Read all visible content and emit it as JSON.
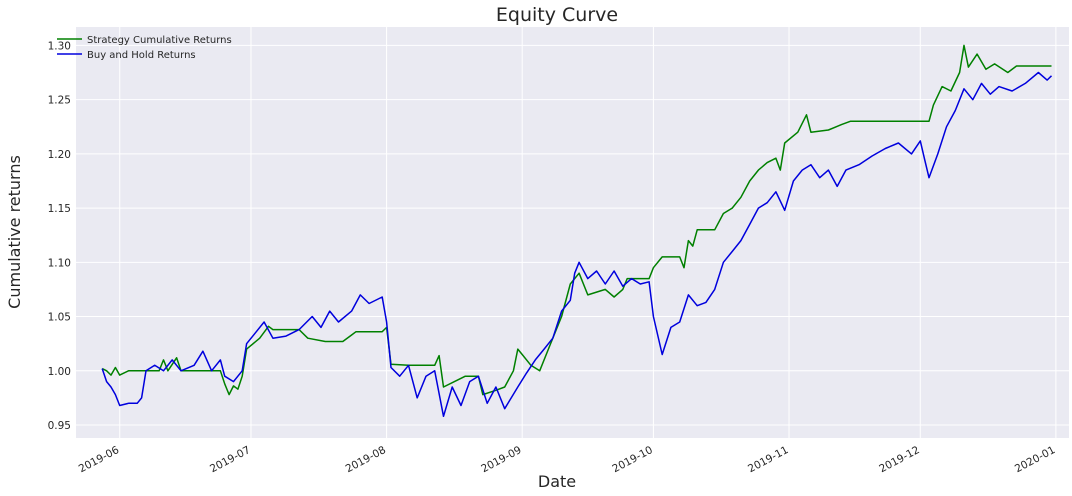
{
  "chart_data": {
    "type": "line",
    "title": "Equity Curve",
    "xlabel": "Date",
    "ylabel": "Cumulative returns",
    "xlim": [
      "2019-05-22",
      "2020-01-04"
    ],
    "ylim": [
      0.938,
      1.317
    ],
    "grid": true,
    "legend_position": "top-left",
    "x_ticks": [
      "2019-06",
      "2019-07",
      "2019-08",
      "2019-09",
      "2019-10",
      "2019-11",
      "2019-12",
      "2020-01"
    ],
    "y_ticks": [
      "0.95",
      "1.00",
      "1.05",
      "1.10",
      "1.15",
      "1.20",
      "1.25",
      "1.30"
    ],
    "series": [
      {
        "name": "Strategy Cumulative Returns",
        "color": "#008000",
        "points": [
          [
            "2019-05-28",
            1.002
          ],
          [
            "2019-05-29",
            1.0
          ],
          [
            "2019-05-30",
            0.996
          ],
          [
            "2019-05-31",
            1.003
          ],
          [
            "2019-06-01",
            0.996
          ],
          [
            "2019-06-03",
            1.0
          ],
          [
            "2019-06-10",
            1.0
          ],
          [
            "2019-06-11",
            1.01
          ],
          [
            "2019-06-12",
            1.0
          ],
          [
            "2019-06-14",
            1.012
          ],
          [
            "2019-06-15",
            1.0
          ],
          [
            "2019-06-24",
            1.0
          ],
          [
            "2019-06-25",
            0.988
          ],
          [
            "2019-06-26",
            0.978
          ],
          [
            "2019-06-27",
            0.986
          ],
          [
            "2019-06-28",
            0.983
          ],
          [
            "2019-06-29",
            0.995
          ],
          [
            "2019-06-30",
            1.02
          ],
          [
            "2019-07-03",
            1.03
          ],
          [
            "2019-07-05",
            1.041
          ],
          [
            "2019-07-06",
            1.038
          ],
          [
            "2019-07-12",
            1.038
          ],
          [
            "2019-07-14",
            1.03
          ],
          [
            "2019-07-18",
            1.027
          ],
          [
            "2019-07-22",
            1.027
          ],
          [
            "2019-07-24",
            1.033
          ],
          [
            "2019-07-25",
            1.036
          ],
          [
            "2019-07-31",
            1.036
          ],
          [
            "2019-08-01",
            1.04
          ],
          [
            "2019-08-02",
            1.006
          ],
          [
            "2019-08-06",
            1.005
          ],
          [
            "2019-08-12",
            1.005
          ],
          [
            "2019-08-13",
            1.014
          ],
          [
            "2019-08-14",
            0.985
          ],
          [
            "2019-08-19",
            0.995
          ],
          [
            "2019-08-22",
            0.995
          ],
          [
            "2019-08-23",
            0.978
          ],
          [
            "2019-08-26",
            0.982
          ],
          [
            "2019-08-28",
            0.985
          ],
          [
            "2019-08-30",
            1.0
          ],
          [
            "2019-08-31",
            1.02
          ],
          [
            "2019-09-01",
            1.015
          ],
          [
            "2019-09-03",
            1.005
          ],
          [
            "2019-09-05",
            1.0
          ],
          [
            "2019-09-07",
            1.02
          ],
          [
            "2019-09-09",
            1.04
          ],
          [
            "2019-09-10",
            1.05
          ],
          [
            "2019-09-12",
            1.08
          ],
          [
            "2019-09-14",
            1.09
          ],
          [
            "2019-09-16",
            1.07
          ],
          [
            "2019-09-20",
            1.075
          ],
          [
            "2019-09-22",
            1.068
          ],
          [
            "2019-09-24",
            1.075
          ],
          [
            "2019-09-25",
            1.085
          ],
          [
            "2019-09-30",
            1.085
          ],
          [
            "2019-10-01",
            1.095
          ],
          [
            "2019-10-03",
            1.105
          ],
          [
            "2019-10-07",
            1.105
          ],
          [
            "2019-10-08",
            1.095
          ],
          [
            "2019-10-09",
            1.12
          ],
          [
            "2019-10-10",
            1.115
          ],
          [
            "2019-10-11",
            1.13
          ],
          [
            "2019-10-15",
            1.13
          ],
          [
            "2019-10-17",
            1.145
          ],
          [
            "2019-10-19",
            1.15
          ],
          [
            "2019-10-21",
            1.16
          ],
          [
            "2019-10-23",
            1.175
          ],
          [
            "2019-10-25",
            1.185
          ],
          [
            "2019-10-27",
            1.192
          ],
          [
            "2019-10-29",
            1.196
          ],
          [
            "2019-10-30",
            1.185
          ],
          [
            "2019-10-31",
            1.21
          ],
          [
            "2019-11-03",
            1.22
          ],
          [
            "2019-11-05",
            1.236
          ],
          [
            "2019-11-06",
            1.22
          ],
          [
            "2019-11-10",
            1.222
          ],
          [
            "2019-11-13",
            1.227
          ],
          [
            "2019-11-15",
            1.23
          ],
          [
            "2019-12-03",
            1.23
          ],
          [
            "2019-12-04",
            1.245
          ],
          [
            "2019-12-06",
            1.262
          ],
          [
            "2019-12-08",
            1.258
          ],
          [
            "2019-12-10",
            1.275
          ],
          [
            "2019-12-11",
            1.3
          ],
          [
            "2019-12-12",
            1.28
          ],
          [
            "2019-12-14",
            1.292
          ],
          [
            "2019-12-16",
            1.278
          ],
          [
            "2019-12-18",
            1.283
          ],
          [
            "2019-12-21",
            1.275
          ],
          [
            "2019-12-23",
            1.281
          ],
          [
            "2019-12-31",
            1.281
          ]
        ]
      },
      {
        "name": "Buy and Hold Returns",
        "color": "#0000dd",
        "points": [
          [
            "2019-05-28",
            1.002
          ],
          [
            "2019-05-29",
            0.99
          ],
          [
            "2019-05-30",
            0.985
          ],
          [
            "2019-05-31",
            0.978
          ],
          [
            "2019-06-01",
            0.968
          ],
          [
            "2019-06-03",
            0.97
          ],
          [
            "2019-06-05",
            0.97
          ],
          [
            "2019-06-06",
            0.975
          ],
          [
            "2019-06-07",
            1.0
          ],
          [
            "2019-06-09",
            1.005
          ],
          [
            "2019-06-11",
            1.0
          ],
          [
            "2019-06-13",
            1.01
          ],
          [
            "2019-06-15",
            1.0
          ],
          [
            "2019-06-18",
            1.005
          ],
          [
            "2019-06-20",
            1.018
          ],
          [
            "2019-06-22",
            1.0
          ],
          [
            "2019-06-24",
            1.01
          ],
          [
            "2019-06-25",
            0.995
          ],
          [
            "2019-06-27",
            0.99
          ],
          [
            "2019-06-29",
            1.0
          ],
          [
            "2019-06-30",
            1.025
          ],
          [
            "2019-07-02",
            1.035
          ],
          [
            "2019-07-04",
            1.045
          ],
          [
            "2019-07-06",
            1.03
          ],
          [
            "2019-07-09",
            1.032
          ],
          [
            "2019-07-12",
            1.038
          ],
          [
            "2019-07-15",
            1.05
          ],
          [
            "2019-07-17",
            1.04
          ],
          [
            "2019-07-19",
            1.055
          ],
          [
            "2019-07-21",
            1.045
          ],
          [
            "2019-07-24",
            1.055
          ],
          [
            "2019-07-26",
            1.07
          ],
          [
            "2019-07-28",
            1.062
          ],
          [
            "2019-07-31",
            1.068
          ],
          [
            "2019-08-01",
            1.045
          ],
          [
            "2019-08-02",
            1.003
          ],
          [
            "2019-08-04",
            0.995
          ],
          [
            "2019-08-06",
            1.005
          ],
          [
            "2019-08-08",
            0.975
          ],
          [
            "2019-08-10",
            0.995
          ],
          [
            "2019-08-12",
            1.0
          ],
          [
            "2019-08-14",
            0.958
          ],
          [
            "2019-08-16",
            0.985
          ],
          [
            "2019-08-18",
            0.968
          ],
          [
            "2019-08-20",
            0.99
          ],
          [
            "2019-08-22",
            0.995
          ],
          [
            "2019-08-24",
            0.97
          ],
          [
            "2019-08-26",
            0.985
          ],
          [
            "2019-08-28",
            0.965
          ],
          [
            "2019-08-31",
            0.985
          ],
          [
            "2019-09-02",
            0.998
          ],
          [
            "2019-09-04",
            1.01
          ],
          [
            "2019-09-06",
            1.02
          ],
          [
            "2019-09-08",
            1.03
          ],
          [
            "2019-09-10",
            1.055
          ],
          [
            "2019-09-12",
            1.065
          ],
          [
            "2019-09-13",
            1.09
          ],
          [
            "2019-09-14",
            1.1
          ],
          [
            "2019-09-16",
            1.085
          ],
          [
            "2019-09-18",
            1.092
          ],
          [
            "2019-09-20",
            1.08
          ],
          [
            "2019-09-22",
            1.092
          ],
          [
            "2019-09-24",
            1.078
          ],
          [
            "2019-09-26",
            1.085
          ],
          [
            "2019-09-28",
            1.08
          ],
          [
            "2019-09-30",
            1.082
          ],
          [
            "2019-10-01",
            1.05
          ],
          [
            "2019-10-03",
            1.015
          ],
          [
            "2019-10-05",
            1.04
          ],
          [
            "2019-10-07",
            1.045
          ],
          [
            "2019-10-09",
            1.07
          ],
          [
            "2019-10-11",
            1.06
          ],
          [
            "2019-10-13",
            1.063
          ],
          [
            "2019-10-15",
            1.075
          ],
          [
            "2019-10-17",
            1.1
          ],
          [
            "2019-10-19",
            1.11
          ],
          [
            "2019-10-21",
            1.12
          ],
          [
            "2019-10-23",
            1.135
          ],
          [
            "2019-10-25",
            1.15
          ],
          [
            "2019-10-27",
            1.155
          ],
          [
            "2019-10-29",
            1.165
          ],
          [
            "2019-10-31",
            1.148
          ],
          [
            "2019-11-02",
            1.175
          ],
          [
            "2019-11-04",
            1.185
          ],
          [
            "2019-11-06",
            1.19
          ],
          [
            "2019-11-08",
            1.178
          ],
          [
            "2019-11-10",
            1.185
          ],
          [
            "2019-11-12",
            1.17
          ],
          [
            "2019-11-14",
            1.185
          ],
          [
            "2019-11-17",
            1.19
          ],
          [
            "2019-11-20",
            1.198
          ],
          [
            "2019-11-23",
            1.205
          ],
          [
            "2019-11-26",
            1.21
          ],
          [
            "2019-11-29",
            1.2
          ],
          [
            "2019-12-01",
            1.212
          ],
          [
            "2019-12-02",
            1.195
          ],
          [
            "2019-12-03",
            1.178
          ],
          [
            "2019-12-05",
            1.2
          ],
          [
            "2019-12-07",
            1.225
          ],
          [
            "2019-12-09",
            1.24
          ],
          [
            "2019-12-11",
            1.26
          ],
          [
            "2019-12-13",
            1.25
          ],
          [
            "2019-12-15",
            1.265
          ],
          [
            "2019-12-17",
            1.255
          ],
          [
            "2019-12-19",
            1.262
          ],
          [
            "2019-12-22",
            1.258
          ],
          [
            "2019-12-25",
            1.265
          ],
          [
            "2019-12-28",
            1.275
          ],
          [
            "2019-12-30",
            1.268
          ],
          [
            "2019-12-31",
            1.272
          ]
        ]
      }
    ]
  }
}
